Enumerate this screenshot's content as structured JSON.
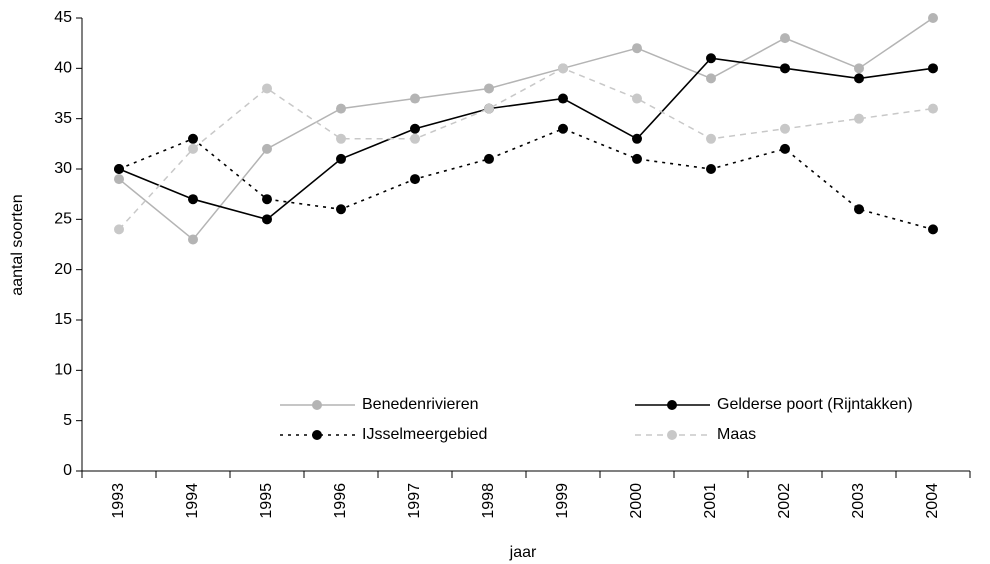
{
  "chart_data": {
    "type": "line",
    "categories": [
      "1993",
      "1994",
      "1995",
      "1996",
      "1997",
      "1998",
      "1999",
      "2000",
      "2001",
      "2002",
      "2003",
      "2004"
    ],
    "series": [
      {
        "name": "Benedenrivieren",
        "color": "#b4b4b4",
        "dash": "solid",
        "values": [
          29,
          23,
          32,
          36,
          37,
          38,
          40,
          42,
          39,
          43,
          40,
          45
        ]
      },
      {
        "name": "Gelderse poort (Rijntakken)",
        "color": "#000000",
        "dash": "solid",
        "values": [
          30,
          27,
          25,
          31,
          34,
          36,
          37,
          33,
          41,
          40,
          39,
          40
        ]
      },
      {
        "name": "IJsselmeergebied",
        "color": "#000000",
        "dash": "dotted",
        "values": [
          30,
          33,
          27,
          26,
          29,
          31,
          34,
          31,
          30,
          32,
          26,
          24
        ]
      },
      {
        "name": "Maas",
        "color": "#c8c8c8",
        "dash": "dashed",
        "values": [
          24,
          32,
          38,
          33,
          33,
          36,
          40,
          37,
          33,
          34,
          35,
          36
        ]
      }
    ],
    "x_label": "jaar",
    "y_label": "aantal soorten",
    "ylim": [
      0,
      45
    ],
    "yticks": [
      0,
      5,
      10,
      15,
      20,
      25,
      30,
      35,
      40,
      45
    ],
    "grid": false
  }
}
